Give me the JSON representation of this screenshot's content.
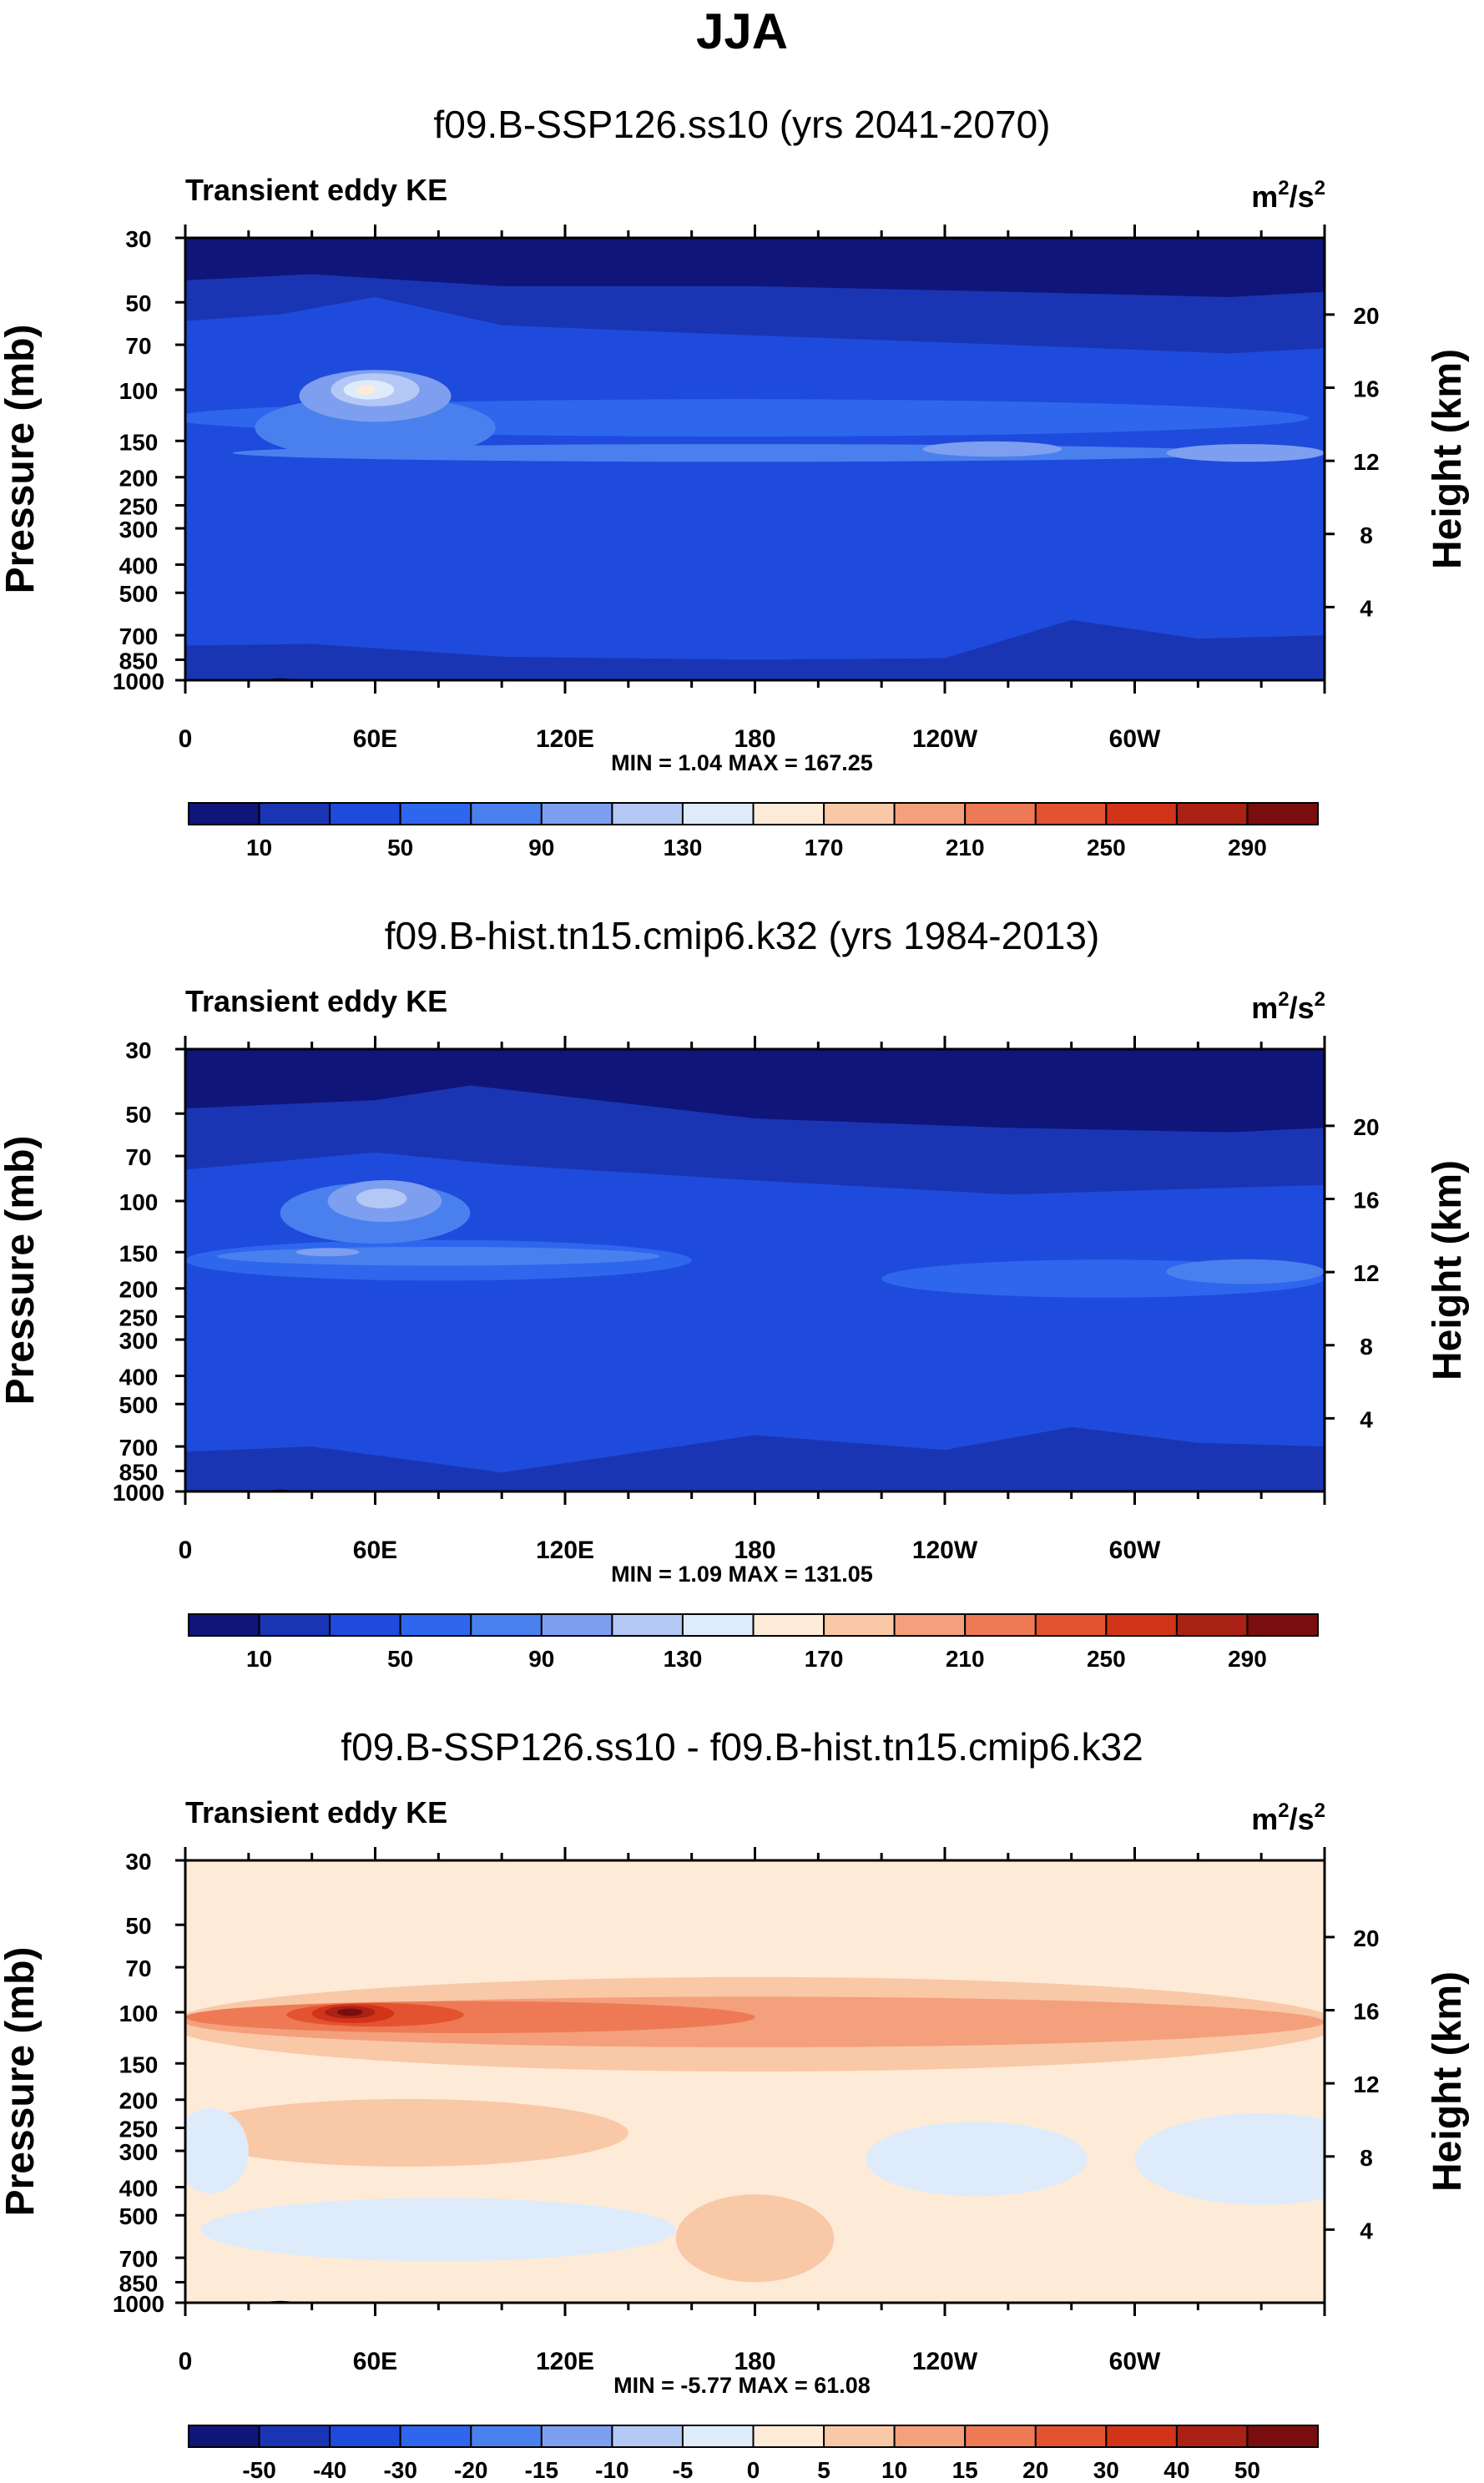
{
  "page_title": "JJA",
  "height_axis_label": "Height (km)",
  "pressure_axis_label": "Pressure (mb)",
  "chart_data": [
    {
      "type": "contour",
      "title": "f09.B-SSP126.ss10 (yrs 2041-2070)",
      "variable": "Transient eddy KE",
      "units_base": "m",
      "units_exp": "2",
      "units_sep": "/s",
      "ylabel": "Pressure (mb)",
      "y2label": "Height (km)",
      "pressure_ticks": [
        "30",
        "50",
        "70",
        "100",
        "150",
        "200",
        "250",
        "300",
        "400",
        "500",
        "700",
        "850",
        "1000"
      ],
      "height_ticks": [
        "20",
        "16",
        "12",
        "8",
        "4"
      ],
      "lon_ticks": [
        "0",
        "60E",
        "120E",
        "180",
        "120W",
        "60W"
      ],
      "min_max": "MIN =    1.04   MAX = 167.25",
      "colorbar": {
        "labels": [
          "10",
          "50",
          "90",
          "130",
          "170",
          "210",
          "250",
          "290"
        ],
        "colors": [
          "#10157a",
          "#1a35b4",
          "#1e4bdc",
          "#2e66ee",
          "#4a80ee",
          "#7e9ff0",
          "#b3c8f4",
          "#deebfb",
          "#fdebd8",
          "#f9c8a7",
          "#f4a07c",
          "#ee7a55",
          "#e45330",
          "#d2341a",
          "#aa2115",
          "#7a0e0e"
        ]
      },
      "bands": [
        {
          "color": "#10157a",
          "lower": [
            [
              0,
              30
            ],
            [
              360,
              30
            ]
          ]
        },
        {
          "color": "#1a35b4",
          "lower": [
            [
              0,
              42
            ],
            [
              40,
              40
            ],
            [
              100,
              44
            ],
            [
              180,
              44
            ],
            [
              260,
              46
            ],
            [
              330,
              48
            ],
            [
              360,
              46
            ]
          ]
        },
        {
          "color": "#1e4bdc",
          "lower": [
            [
              0,
              58
            ],
            [
              30,
              55
            ],
            [
              60,
              48
            ],
            [
              100,
              60
            ],
            [
              180,
              65
            ],
            [
              260,
              70
            ],
            [
              330,
              75
            ],
            [
              360,
              72
            ]
          ]
        },
        {
          "color": "#1e4bdc",
          "lower": [
            [
              0,
              580
            ],
            [
              40,
              500
            ],
            [
              100,
              380
            ],
            [
              180,
              400
            ],
            [
              260,
              420
            ],
            [
              330,
              460
            ],
            [
              360,
              500
            ]
          ]
        },
        {
          "color": "#1a35b4",
          "lower": [
            [
              0,
              760
            ],
            [
              40,
              750
            ],
            [
              100,
              830
            ],
            [
              180,
              850
            ],
            [
              240,
              840
            ],
            [
              280,
              620
            ],
            [
              320,
              720
            ],
            [
              360,
              700
            ]
          ]
        },
        {
          "color": "#10157a",
          "lower": [
            [
              0,
              1000
            ],
            [
              360,
              1000
            ]
          ]
        }
      ],
      "blobs": [
        {
          "color": "#2e66ee",
          "lon": 175,
          "p": 125,
          "rx": 180,
          "rp": 20
        },
        {
          "color": "#4a80ee",
          "lon": 60,
          "p": 135,
          "rx": 38,
          "rp": 38
        },
        {
          "color": "#4a80ee",
          "lon": 175,
          "p": 165,
          "rx": 160,
          "rp": 12
        },
        {
          "color": "#7e9ff0",
          "lon": 60,
          "p": 105,
          "rx": 24,
          "rp": 24
        },
        {
          "color": "#7e9ff0",
          "lon": 255,
          "p": 160,
          "rx": 22,
          "rp": 10
        },
        {
          "color": "#7e9ff0",
          "lon": 335,
          "p": 165,
          "rx": 25,
          "rp": 12
        },
        {
          "color": "#b3c8f4",
          "lon": 60,
          "p": 100,
          "rx": 14,
          "rp": 14
        },
        {
          "color": "#deebfb",
          "lon": 58,
          "p": 100,
          "rx": 8,
          "rp": 8
        },
        {
          "color": "#fdebd8",
          "lon": 57,
          "p": 100,
          "rx": 3,
          "rp": 4
        }
      ],
      "topo": [
        [
          8,
          1000
        ],
        [
          25,
          992
        ],
        [
          30,
          985
        ],
        [
          35,
          992
        ],
        [
          42,
          1000
        ]
      ]
    },
    {
      "type": "contour",
      "title": "f09.B-hist.tn15.cmip6.k32 (yrs 1984-2013)",
      "variable": "Transient eddy KE",
      "units_base": "m",
      "units_exp": "2",
      "units_sep": "/s",
      "ylabel": "Pressure (mb)",
      "y2label": "Height (km)",
      "pressure_ticks": [
        "30",
        "50",
        "70",
        "100",
        "150",
        "200",
        "250",
        "300",
        "400",
        "500",
        "700",
        "850",
        "1000"
      ],
      "height_ticks": [
        "20",
        "16",
        "12",
        "8",
        "4"
      ],
      "lon_ticks": [
        "0",
        "60E",
        "120E",
        "180",
        "120W",
        "60W"
      ],
      "min_max": "MIN =    1.09   MAX = 131.05",
      "colorbar": {
        "labels": [
          "10",
          "50",
          "90",
          "130",
          "170",
          "210",
          "250",
          "290"
        ],
        "colors": [
          "#10157a",
          "#1a35b4",
          "#1e4bdc",
          "#2e66ee",
          "#4a80ee",
          "#7e9ff0",
          "#b3c8f4",
          "#deebfb",
          "#fdebd8",
          "#f9c8a7",
          "#f4a07c",
          "#ee7a55",
          "#e45330",
          "#d2341a",
          "#aa2115",
          "#7a0e0e"
        ]
      },
      "bands": [
        {
          "color": "#10157a",
          "lower": [
            [
              0,
              30
            ],
            [
              360,
              30
            ]
          ]
        },
        {
          "color": "#1a35b4",
          "lower": [
            [
              0,
              48
            ],
            [
              60,
              45
            ],
            [
              90,
              40
            ],
            [
              180,
              52
            ],
            [
              260,
              56
            ],
            [
              330,
              58
            ],
            [
              360,
              56
            ]
          ]
        },
        {
          "color": "#1e4bdc",
          "lower": [
            [
              0,
              78
            ],
            [
              60,
              68
            ],
            [
              100,
              75
            ],
            [
              180,
              85
            ],
            [
              260,
              95
            ],
            [
              330,
              90
            ],
            [
              360,
              88
            ]
          ]
        },
        {
          "color": "#1e4bdc",
          "lower": [
            [
              0,
              520
            ],
            [
              50,
              440
            ],
            [
              120,
              250
            ],
            [
              180,
              280
            ],
            [
              260,
              330
            ],
            [
              330,
              420
            ],
            [
              360,
              450
            ]
          ]
        },
        {
          "color": "#1a35b4",
          "lower": [
            [
              0,
              730
            ],
            [
              40,
              700
            ],
            [
              100,
              860
            ],
            [
              180,
              640
            ],
            [
              240,
              720
            ],
            [
              280,
              600
            ],
            [
              320,
              680
            ],
            [
              360,
              700
            ]
          ]
        },
        {
          "color": "#10157a",
          "lower": [
            [
              0,
              1000
            ],
            [
              360,
              1000
            ]
          ]
        }
      ],
      "blobs": [
        {
          "color": "#2e66ee",
          "lon": 80,
          "p": 160,
          "rx": 80,
          "rp": 28
        },
        {
          "color": "#2e66ee",
          "lon": 290,
          "p": 185,
          "rx": 70,
          "rp": 30
        },
        {
          "color": "#4a80ee",
          "lon": 60,
          "p": 110,
          "rx": 30,
          "rp": 30
        },
        {
          "color": "#4a80ee",
          "lon": 80,
          "p": 155,
          "rx": 70,
          "rp": 12
        },
        {
          "color": "#4a80ee",
          "lon": 335,
          "p": 175,
          "rx": 25,
          "rp": 18
        },
        {
          "color": "#7e9ff0",
          "lon": 63,
          "p": 100,
          "rx": 18,
          "rp": 18
        },
        {
          "color": "#7e9ff0",
          "lon": 45,
          "p": 150,
          "rx": 10,
          "rp": 5
        },
        {
          "color": "#b3c8f4",
          "lon": 62,
          "p": 98,
          "rx": 8,
          "rp": 8
        }
      ],
      "topo": [
        [
          8,
          1000
        ],
        [
          25,
          992
        ],
        [
          30,
          985
        ],
        [
          35,
          992
        ],
        [
          42,
          1000
        ]
      ]
    },
    {
      "type": "contour",
      "title": "f09.B-SSP126.ss10 - f09.B-hist.tn15.cmip6.k32",
      "variable": "Transient eddy KE",
      "units_base": "m",
      "units_exp": "2",
      "units_sep": "/s",
      "ylabel": "Pressure (mb)",
      "y2label": "Height (km)",
      "pressure_ticks": [
        "30",
        "50",
        "70",
        "100",
        "150",
        "200",
        "250",
        "300",
        "400",
        "500",
        "700",
        "850",
        "1000"
      ],
      "height_ticks": [
        "20",
        "16",
        "12",
        "8",
        "4"
      ],
      "lon_ticks": [
        "0",
        "60E",
        "120E",
        "180",
        "120W",
        "60W"
      ],
      "min_max": "MIN =  -5.77   MAX = 61.08",
      "colorbar": {
        "labels": [
          "-50",
          "-40",
          "-30",
          "-20",
          "-15",
          "-10",
          "-5",
          "0",
          "5",
          "10",
          "15",
          "20",
          "30",
          "40",
          "50"
        ],
        "colors": [
          "#10157a",
          "#1a35b4",
          "#1e4bdc",
          "#2e66ee",
          "#4a80ee",
          "#7e9ff0",
          "#b3c8f4",
          "#deebfb",
          "#fdebd8",
          "#f9c8a7",
          "#f4a07c",
          "#ee7a55",
          "#e45330",
          "#d2341a",
          "#aa2115",
          "#7a0e0e"
        ]
      },
      "bands": [
        {
          "color": "#fdebd8",
          "lower": [
            [
              0,
              30
            ],
            [
              360,
              30
            ]
          ]
        }
      ],
      "blobs": [
        {
          "color": "#f9c8a7",
          "lon": 180,
          "p": 110,
          "rx": 185,
          "rp": 50
        },
        {
          "color": "#f9c8a7",
          "lon": 180,
          "p": 600,
          "rx": 25,
          "rp": 250
        },
        {
          "color": "#f9c8a7",
          "lon": 70,
          "p": 260,
          "rx": 70,
          "rp": 80
        },
        {
          "color": "#deebfb",
          "lon": 250,
          "p": 320,
          "rx": 35,
          "rp": 110
        },
        {
          "color": "#deebfb",
          "lon": 340,
          "p": 320,
          "rx": 40,
          "rp": 140
        },
        {
          "color": "#deebfb",
          "lon": 80,
          "p": 560,
          "rx": 75,
          "rp": 160
        },
        {
          "color": "#deebfb",
          "lon": 8,
          "p": 300,
          "rx": 12,
          "rp": 120
        },
        {
          "color": "#f4a07c",
          "lon": 180,
          "p": 108,
          "rx": 180,
          "rp": 24
        },
        {
          "color": "#ee7a55",
          "lon": 90,
          "p": 104,
          "rx": 90,
          "rp": 14
        },
        {
          "color": "#e45330",
          "lon": 60,
          "p": 102,
          "rx": 28,
          "rp": 10
        },
        {
          "color": "#d2341a",
          "lon": 53,
          "p": 101,
          "rx": 13,
          "rp": 8
        },
        {
          "color": "#aa2115",
          "lon": 52,
          "p": 100,
          "rx": 8,
          "rp": 5
        },
        {
          "color": "#7a0e0e",
          "lon": 52,
          "p": 100,
          "rx": 4,
          "rp": 3
        }
      ],
      "topo": [
        [
          8,
          1000
        ],
        [
          25,
          992
        ],
        [
          30,
          985
        ],
        [
          35,
          992
        ],
        [
          42,
          1000
        ]
      ]
    }
  ]
}
